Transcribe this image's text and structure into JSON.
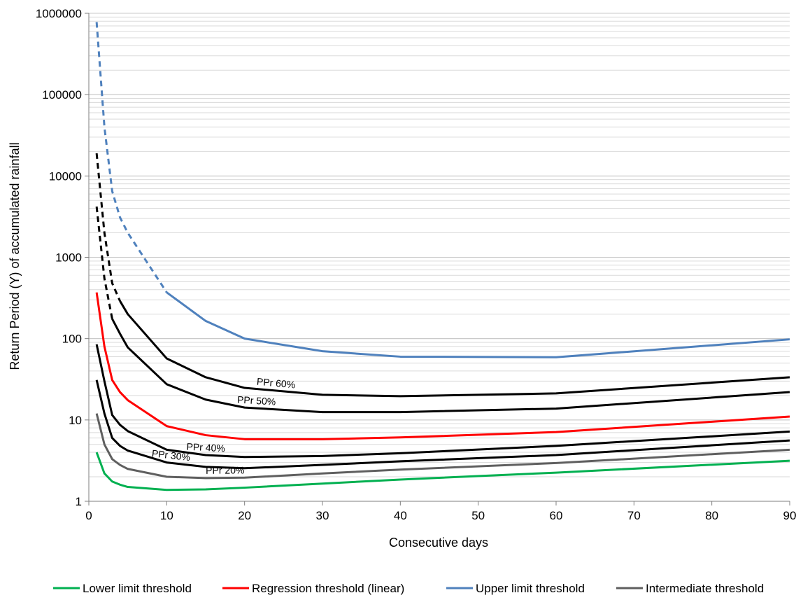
{
  "chart_data": {
    "type": "line",
    "xlabel": "Consecutive days",
    "ylabel": "Return Period (Y) of accumulated rainfall",
    "xlim": [
      0,
      90
    ],
    "ylim": [
      1,
      1000000
    ],
    "y_scale": "log",
    "x_ticks": [
      "0",
      "10",
      "20",
      "30",
      "40",
      "50",
      "60",
      "70",
      "80",
      "90"
    ],
    "y_ticks": [
      "1",
      "10",
      "100",
      "1000",
      "10000",
      "100000",
      "1000000"
    ],
    "grid": "horizontal minor log gridlines",
    "legend_position": "bottom",
    "x": [
      1,
      2,
      3,
      4,
      5,
      10,
      15,
      20,
      30,
      40,
      60,
      90
    ],
    "series": [
      {
        "name": "Lower limit threshold",
        "color": "#00b050",
        "values": [
          4,
          2.2,
          1.75,
          1.6,
          1.5,
          1.38,
          1.4,
          1.47,
          1.65,
          1.85,
          2.25,
          3.15
        ]
      },
      {
        "name": "Regression threshold (linear)",
        "color": "#ff0000",
        "values": [
          370,
          80,
          31,
          22,
          17.5,
          8.4,
          6.5,
          5.8,
          5.8,
          6.1,
          7.1,
          11
        ],
        "dash_until_x": null
      },
      {
        "name": "Upper limit threshold",
        "color": "#4f81bd",
        "values": [
          780000,
          40000,
          6500,
          3100,
          2000,
          370,
          165,
          100,
          70,
          60,
          59,
          98
        ],
        "dash_until_x": 10
      },
      {
        "name": "Intermediate threshold",
        "color": "#5f5f5f",
        "values": [
          12,
          5,
          3.3,
          2.8,
          2.5,
          2.0,
          1.93,
          1.95,
          2.2,
          2.45,
          2.95,
          4.3
        ]
      }
    ],
    "intermediate_curves": [
      {
        "label": "PPr 20%",
        "color": "#5f5f5f",
        "values": [
          12,
          5,
          3.3,
          2.8,
          2.5,
          2.0,
          1.93,
          1.95,
          2.2,
          2.45,
          2.95,
          4.3
        ],
        "label_x": 17.5
      },
      {
        "label": "PPr 30%",
        "color": "#000000",
        "values": [
          31,
          12,
          6,
          4.8,
          4.2,
          3.0,
          2.65,
          2.55,
          2.8,
          3.1,
          3.7,
          5.6
        ],
        "label_x": 10.5
      },
      {
        "label": "PPr 40%",
        "color": "#000000",
        "values": [
          85,
          30,
          11.5,
          8.7,
          7.3,
          4.3,
          3.7,
          3.5,
          3.6,
          3.9,
          4.8,
          7.2
        ],
        "label_x": 15
      },
      {
        "label": "PPr 50%",
        "color": "#000000",
        "values": [
          4200,
          550,
          175,
          115,
          78,
          27.5,
          17.8,
          14.2,
          12.5,
          12.5,
          13.8,
          22
        ],
        "dash_until_x": 3,
        "label_x": 21.5
      },
      {
        "label": "PPr 60%",
        "color": "#000000",
        "values": [
          19000,
          2000,
          480,
          290,
          200,
          57,
          33.5,
          24.8,
          20.4,
          19.6,
          21.2,
          33.5
        ],
        "dash_until_x": 4,
        "label_x": 24
      }
    ]
  }
}
